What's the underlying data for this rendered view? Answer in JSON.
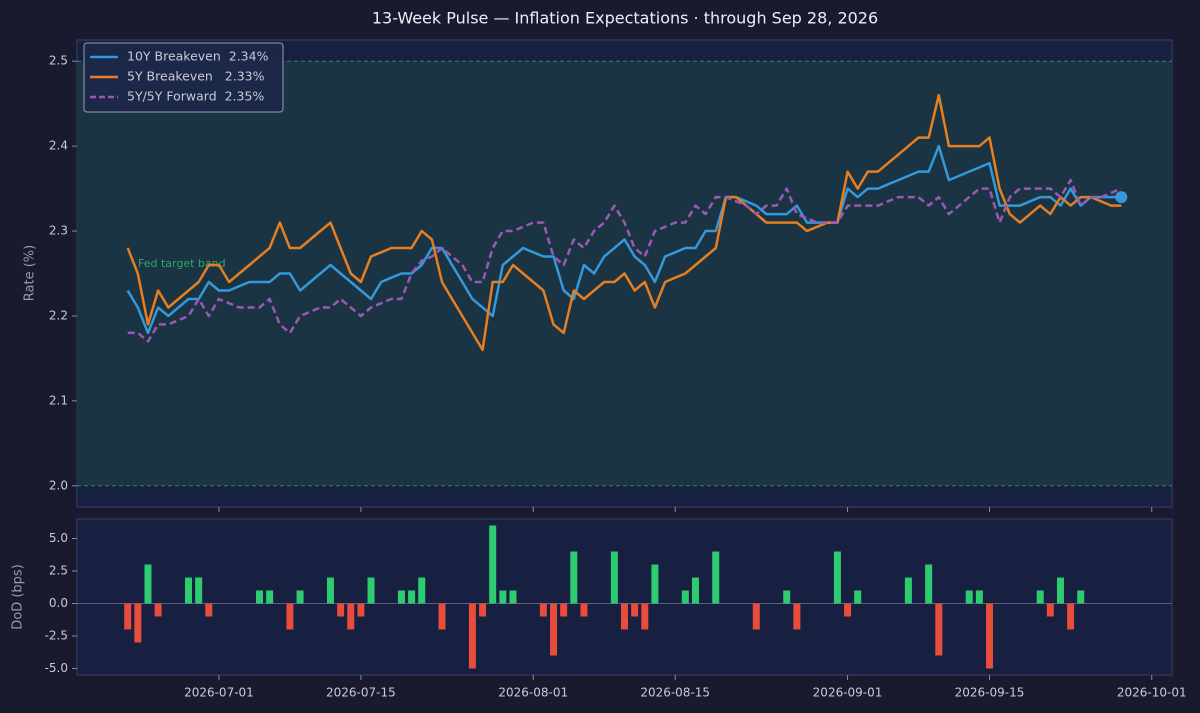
{
  "chart_data": [
    {
      "type": "line",
      "title": "13-Week Pulse — Inflation Expectations  ·  through Sep 28, 2026",
      "y_label": "Rate (%)",
      "annotation": "Fed target band",
      "band": [
        2.0,
        2.5
      ],
      "band_color": "#1b3443",
      "band_edge_color": "#2a8a62",
      "x": [
        "2026-06-22",
        "2026-06-23",
        "2026-06-24",
        "2026-06-25",
        "2026-06-26",
        "2026-06-27",
        "2026-06-28",
        "2026-06-29",
        "2026-06-30",
        "2026-07-01",
        "2026-07-02",
        "2026-07-03",
        "2026-07-04",
        "2026-07-05",
        "2026-07-06",
        "2026-07-07",
        "2026-07-08",
        "2026-07-09",
        "2026-07-10",
        "2026-07-11",
        "2026-07-12",
        "2026-07-13",
        "2026-07-14",
        "2026-07-15",
        "2026-07-16",
        "2026-07-17",
        "2026-07-18",
        "2026-07-19",
        "2026-07-20",
        "2026-07-21",
        "2026-07-22",
        "2026-07-23",
        "2026-07-24",
        "2026-07-25",
        "2026-07-26",
        "2026-07-27",
        "2026-07-28",
        "2026-07-29",
        "2026-07-30",
        "2026-07-31",
        "2026-08-01",
        "2026-08-02",
        "2026-08-03",
        "2026-08-04",
        "2026-08-05",
        "2026-08-06",
        "2026-08-07",
        "2026-08-08",
        "2026-08-09",
        "2026-08-10",
        "2026-08-11",
        "2026-08-12",
        "2026-08-13",
        "2026-08-14",
        "2026-08-15",
        "2026-08-16",
        "2026-08-17",
        "2026-08-18",
        "2026-08-19",
        "2026-08-20",
        "2026-08-21",
        "2026-08-22",
        "2026-08-23",
        "2026-08-24",
        "2026-08-25",
        "2026-08-26",
        "2026-08-27",
        "2026-08-28",
        "2026-08-29",
        "2026-08-30",
        "2026-08-31",
        "2026-09-01",
        "2026-09-02",
        "2026-09-03",
        "2026-09-04",
        "2026-09-05",
        "2026-09-06",
        "2026-09-07",
        "2026-09-08",
        "2026-09-09",
        "2026-09-10",
        "2026-09-11",
        "2026-09-12",
        "2026-09-13",
        "2026-09-14",
        "2026-09-15",
        "2026-09-16",
        "2026-09-17",
        "2026-09-18",
        "2026-09-19",
        "2026-09-20",
        "2026-09-21",
        "2026-09-22",
        "2026-09-23",
        "2026-09-24",
        "2026-09-25",
        "2026-09-26",
        "2026-09-27",
        "2026-09-28"
      ],
      "series": [
        {
          "name": "10Y Breakeven  2.34%",
          "color": "#3498db",
          "dash": false,
          "highlight_last": true,
          "values": [
            2.23,
            2.21,
            2.18,
            2.21,
            2.2,
            2.21,
            2.22,
            2.22,
            2.24,
            2.23,
            2.23,
            2.235,
            2.24,
            2.24,
            2.24,
            2.25,
            2.25,
            2.23,
            2.24,
            2.25,
            2.26,
            2.25,
            2.24,
            2.23,
            2.22,
            2.24,
            2.245,
            2.25,
            2.25,
            2.26,
            2.28,
            2.28,
            2.26,
            2.24,
            2.22,
            2.21,
            2.2,
            2.26,
            2.27,
            2.28,
            2.275,
            2.27,
            2.27,
            2.23,
            2.22,
            2.26,
            2.25,
            2.27,
            2.28,
            2.29,
            2.27,
            2.26,
            2.24,
            2.27,
            2.275,
            2.28,
            2.28,
            2.3,
            2.3,
            2.34,
            2.34,
            2.335,
            2.33,
            2.32,
            2.32,
            2.32,
            2.33,
            2.31,
            2.31,
            2.31,
            2.31,
            2.35,
            2.34,
            2.35,
            2.35,
            2.355,
            2.36,
            2.365,
            2.37,
            2.37,
            2.4,
            2.36,
            2.365,
            2.37,
            2.375,
            2.38,
            2.33,
            2.33,
            2.33,
            2.335,
            2.34,
            2.34,
            2.33,
            2.35,
            2.33,
            2.34,
            2.34,
            2.34,
            2.34
          ]
        },
        {
          "name": "5Y Breakeven   2.33%",
          "color": "#e67e22",
          "dash": false,
          "values": [
            2.28,
            2.25,
            2.19,
            2.23,
            2.21,
            2.22,
            2.23,
            2.24,
            2.26,
            2.26,
            2.24,
            2.25,
            2.26,
            2.27,
            2.28,
            2.31,
            2.28,
            2.28,
            2.29,
            2.3,
            2.31,
            2.28,
            2.25,
            2.24,
            2.27,
            2.275,
            2.28,
            2.28,
            2.28,
            2.3,
            2.29,
            2.24,
            2.22,
            2.2,
            2.18,
            2.16,
            2.24,
            2.24,
            2.26,
            2.25,
            2.24,
            2.23,
            2.19,
            2.18,
            2.23,
            2.22,
            2.23,
            2.24,
            2.24,
            2.25,
            2.23,
            2.24,
            2.21,
            2.24,
            2.245,
            2.25,
            2.26,
            2.27,
            2.28,
            2.34,
            2.34,
            2.33,
            2.32,
            2.31,
            2.31,
            2.31,
            2.31,
            2.3,
            2.305,
            2.31,
            2.31,
            2.37,
            2.35,
            2.37,
            2.37,
            2.38,
            2.39,
            2.4,
            2.41,
            2.41,
            2.46,
            2.4,
            2.4,
            2.4,
            2.4,
            2.41,
            2.35,
            2.32,
            2.31,
            2.32,
            2.33,
            2.32,
            2.34,
            2.33,
            2.34,
            2.34,
            2.335,
            2.33,
            2.33
          ]
        },
        {
          "name": "5Y/5Y Forward  2.35%",
          "color": "#9b59b6",
          "dash": true,
          "values": [
            2.18,
            2.18,
            2.17,
            2.19,
            2.19,
            2.195,
            2.2,
            2.22,
            2.2,
            2.22,
            2.215,
            2.21,
            2.21,
            2.21,
            2.22,
            2.19,
            2.18,
            2.2,
            2.205,
            2.21,
            2.21,
            2.22,
            2.21,
            2.2,
            2.21,
            2.215,
            2.22,
            2.22,
            2.25,
            2.265,
            2.27,
            2.28,
            2.27,
            2.26,
            2.24,
            2.24,
            2.28,
            2.3,
            2.3,
            2.305,
            2.31,
            2.31,
            2.27,
            2.26,
            2.29,
            2.28,
            2.3,
            2.31,
            2.33,
            2.31,
            2.28,
            2.27,
            2.3,
            2.305,
            2.31,
            2.31,
            2.33,
            2.32,
            2.34,
            2.34,
            2.335,
            2.33,
            2.32,
            2.33,
            2.33,
            2.35,
            2.32,
            2.315,
            2.31,
            2.31,
            2.31,
            2.33,
            2.33,
            2.33,
            2.33,
            2.335,
            2.34,
            2.34,
            2.34,
            2.33,
            2.34,
            2.32,
            2.33,
            2.34,
            2.35,
            2.35,
            2.31,
            2.34,
            2.35,
            2.35,
            2.35,
            2.35,
            2.34,
            2.36,
            2.33,
            2.34,
            2.34,
            2.345,
            2.35
          ]
        }
      ],
      "xlim": [
        "2026-06-17",
        "2026-10-03"
      ],
      "ylim": [
        1.975,
        2.525
      ],
      "yticks": [
        {
          "value": 2.0,
          "label": "2.0"
        },
        2.1,
        2.2,
        2.3,
        2.4,
        2.5
      ],
      "legend": "upper left"
    },
    {
      "type": "bar",
      "y_label": "DoD (bps)",
      "positive_color": "#2ecc71",
      "negative_color": "#e74c3c",
      "x": [
        "2026-06-22",
        "2026-06-23",
        "2026-06-24",
        "2026-06-25",
        "2026-06-26",
        "2026-06-27",
        "2026-06-28",
        "2026-06-29",
        "2026-06-30",
        "2026-07-01",
        "2026-07-02",
        "2026-07-03",
        "2026-07-04",
        "2026-07-05",
        "2026-07-06",
        "2026-07-07",
        "2026-07-08",
        "2026-07-09",
        "2026-07-10",
        "2026-07-11",
        "2026-07-12",
        "2026-07-13",
        "2026-07-14",
        "2026-07-15",
        "2026-07-16",
        "2026-07-17",
        "2026-07-18",
        "2026-07-19",
        "2026-07-20",
        "2026-07-21",
        "2026-07-22",
        "2026-07-23",
        "2026-07-24",
        "2026-07-25",
        "2026-07-26",
        "2026-07-27",
        "2026-07-28",
        "2026-07-29",
        "2026-07-30",
        "2026-07-31",
        "2026-08-01",
        "2026-08-02",
        "2026-08-03",
        "2026-08-04",
        "2026-08-05",
        "2026-08-06",
        "2026-08-07",
        "2026-08-08",
        "2026-08-09",
        "2026-08-10",
        "2026-08-11",
        "2026-08-12",
        "2026-08-13",
        "2026-08-14",
        "2026-08-15",
        "2026-08-16",
        "2026-08-17",
        "2026-08-18",
        "2026-08-19",
        "2026-08-20",
        "2026-08-21",
        "2026-08-22",
        "2026-08-23",
        "2026-08-24",
        "2026-08-25",
        "2026-08-26",
        "2026-08-27",
        "2026-08-28",
        "2026-08-29",
        "2026-08-30",
        "2026-08-31",
        "2026-09-01",
        "2026-09-02",
        "2026-09-03",
        "2026-09-04",
        "2026-09-05",
        "2026-09-06",
        "2026-09-07",
        "2026-09-08",
        "2026-09-09",
        "2026-09-10",
        "2026-09-11",
        "2026-09-12",
        "2026-09-13",
        "2026-09-14",
        "2026-09-15",
        "2026-09-16",
        "2026-09-17",
        "2026-09-18",
        "2026-09-19",
        "2026-09-20",
        "2026-09-21",
        "2026-09-22",
        "2026-09-23",
        "2026-09-24",
        "2026-09-25",
        "2026-09-26",
        "2026-09-27",
        "2026-09-28"
      ],
      "values": [
        -2,
        -3,
        3,
        -1,
        0,
        0,
        2,
        2,
        -1,
        0,
        0,
        0,
        0,
        1,
        1,
        0,
        -2,
        1,
        0,
        0,
        2,
        -1,
        -2,
        -1,
        2,
        0,
        0,
        1,
        1,
        2,
        0,
        -2,
        0,
        0,
        -5,
        -1,
        6,
        1,
        1,
        0,
        0,
        -1,
        -4,
        -1,
        4,
        -1,
        0,
        0,
        4,
        -2,
        -1,
        -2,
        3,
        0,
        0,
        1,
        2,
        0,
        4,
        0,
        0,
        0,
        -2,
        0,
        0,
        1,
        -2,
        0,
        0,
        0,
        4,
        -1,
        1,
        0,
        0,
        0,
        0,
        2,
        0,
        3,
        -4,
        0,
        0,
        1,
        1,
        -5,
        0,
        0,
        0,
        0,
        1,
        -1,
        2,
        -2,
        1,
        0,
        0,
        0,
        0
      ],
      "xlim": [
        "2026-06-17",
        "2026-10-03"
      ],
      "xticks": [
        "2026-07-01",
        "2026-07-15",
        "2026-08-01",
        "2026-08-15",
        "2026-09-01",
        "2026-09-15",
        "2026-10-01"
      ],
      "ylim": [
        -5.5,
        6.5
      ],
      "yticks": [
        {
          "value": -5,
          "label": "-5.0"
        },
        -2.5,
        {
          "value": 0,
          "label": "0.0"
        },
        2.5,
        {
          "value": 5,
          "label": "5.0"
        }
      ]
    }
  ]
}
